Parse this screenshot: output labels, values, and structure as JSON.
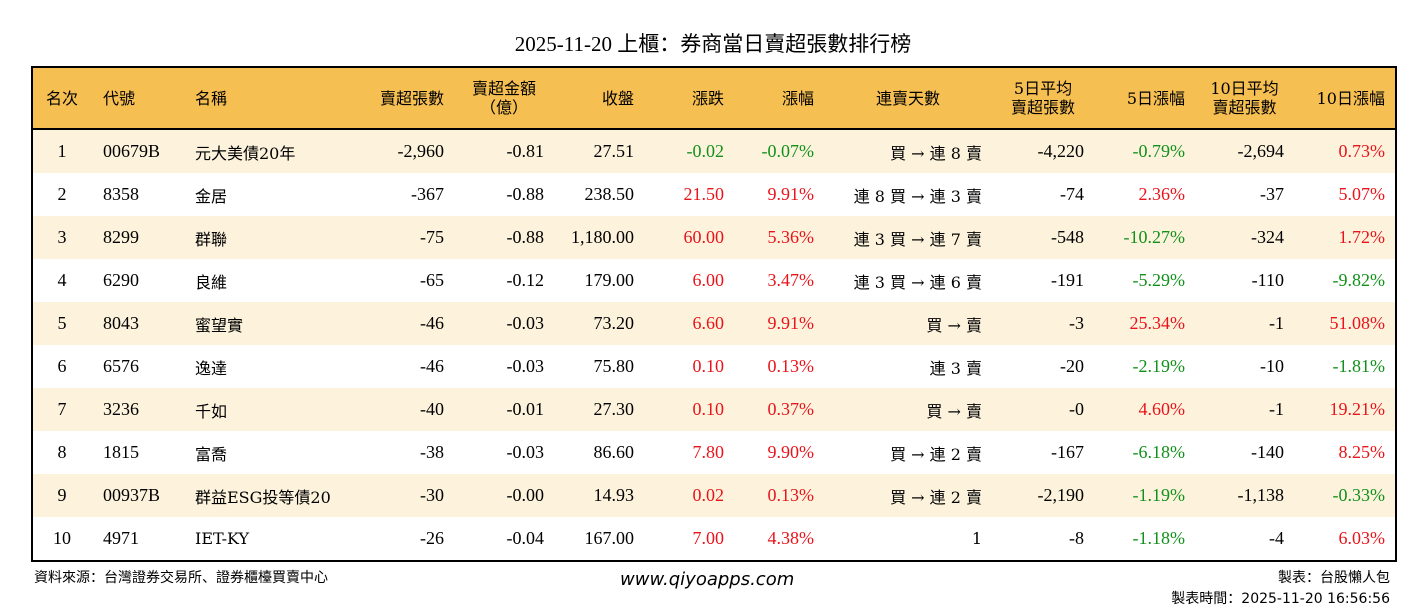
{
  "title": "2025-11-20 上櫃：券商當日賣超張數排行榜",
  "colors": {
    "header_bg": "#f6bf52",
    "row_alt_bg": "#fdf3dd",
    "up": "#e8141b",
    "down": "#12911a"
  },
  "headers": [
    "名次",
    "代號",
    "名稱",
    "賣超張數",
    "賣超金額\n（億）",
    "收盤",
    "漲跌",
    "漲幅",
    "連賣天數",
    "5日平均\n賣超張數",
    "5日漲幅",
    "10日平均\n賣超張數",
    "10日漲幅"
  ],
  "rows": [
    [
      "1",
      "00679B",
      "元大美債20年",
      "-2,960",
      "-0.81",
      "27.51",
      "-0.02",
      "-0.07%",
      "買 → 連 8 賣",
      "-4,220",
      "-0.79%",
      "-2,694",
      "0.73%"
    ],
    [
      "2",
      "8358",
      "金居",
      "-367",
      "-0.88",
      "238.50",
      "21.50",
      "9.91%",
      "連 8 買 → 連 3 賣",
      "-74",
      "2.36%",
      "-37",
      "5.07%"
    ],
    [
      "3",
      "8299",
      "群聯",
      "-75",
      "-0.88",
      "1,180.00",
      "60.00",
      "5.36%",
      "連 3 買 → 連 7 賣",
      "-548",
      "-10.27%",
      "-324",
      "1.72%"
    ],
    [
      "4",
      "6290",
      "良維",
      "-65",
      "-0.12",
      "179.00",
      "6.00",
      "3.47%",
      "連 3 買 → 連 6 賣",
      "-191",
      "-5.29%",
      "-110",
      "-9.82%"
    ],
    [
      "5",
      "8043",
      "蜜望實",
      "-46",
      "-0.03",
      "73.20",
      "6.60",
      "9.91%",
      "買 → 賣",
      "-3",
      "25.34%",
      "-1",
      "51.08%"
    ],
    [
      "6",
      "6576",
      "逸達",
      "-46",
      "-0.03",
      "75.80",
      "0.10",
      "0.13%",
      "連 3 賣",
      "-20",
      "-2.19%",
      "-10",
      "-1.81%"
    ],
    [
      "7",
      "3236",
      "千如",
      "-40",
      "-0.01",
      "27.30",
      "0.10",
      "0.37%",
      "買 → 賣",
      "-0",
      "4.60%",
      "-1",
      "19.21%"
    ],
    [
      "8",
      "1815",
      "富喬",
      "-38",
      "-0.03",
      "86.60",
      "7.80",
      "9.90%",
      "買 → 連 2 賣",
      "-167",
      "-6.18%",
      "-140",
      "8.25%"
    ],
    [
      "9",
      "00937B",
      "群益ESG投等債20",
      "-30",
      "-0.00",
      "14.93",
      "0.02",
      "0.13%",
      "買 → 連 2 賣",
      "-2,190",
      "-1.19%",
      "-1,138",
      "-0.33%"
    ],
    [
      "10",
      "4971",
      "IET-KY",
      "-26",
      "-0.04",
      "167.00",
      "7.00",
      "4.38%",
      "1",
      "-8",
      "-1.18%",
      "-4",
      "6.03%"
    ]
  ],
  "footer": {
    "source": "資料來源：台灣證券交易所、證券櫃檯買賣中心",
    "website": "www.qiyoapps.com",
    "maker": "製表：台股懶人包",
    "time": "製表時間：2025-11-20 16:56:56"
  }
}
